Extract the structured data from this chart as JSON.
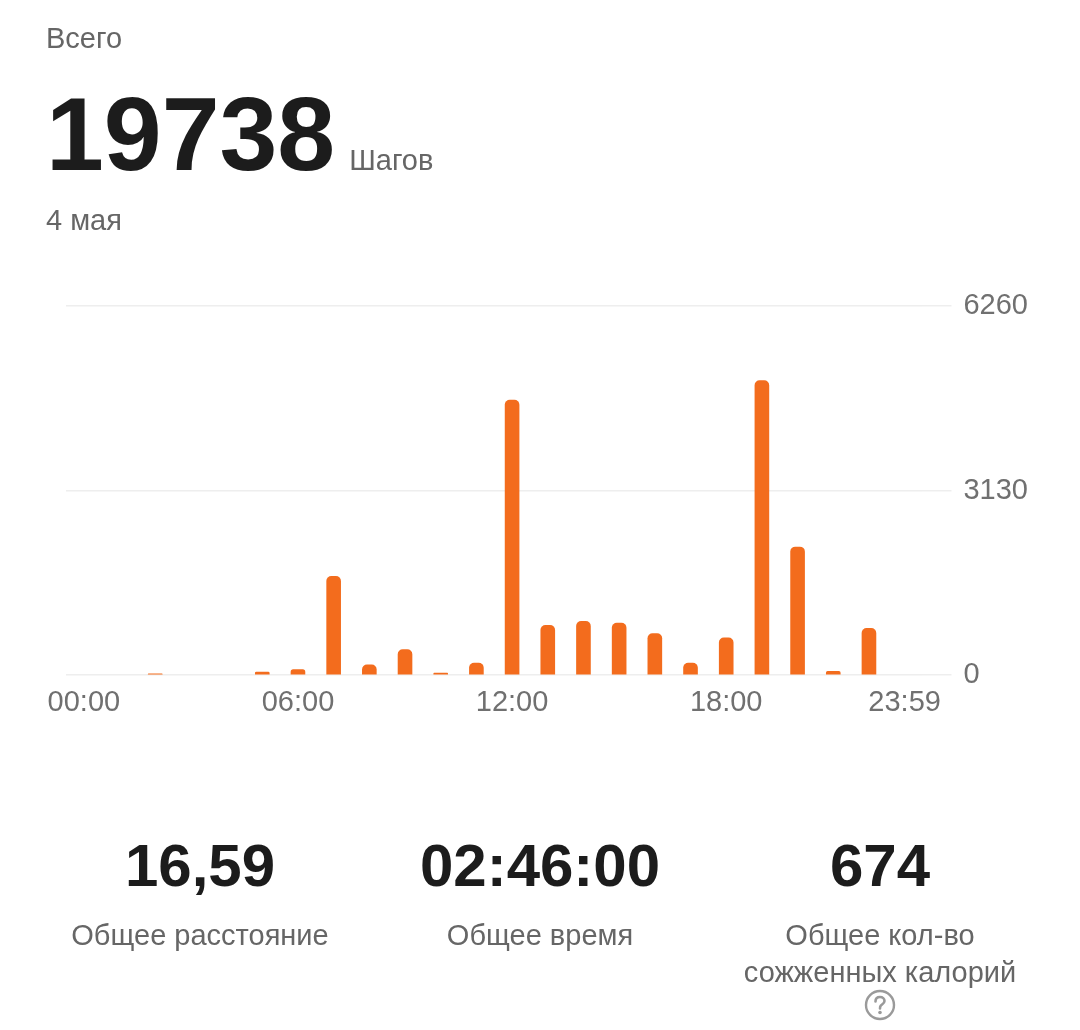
{
  "chart_data": {
    "type": "bar",
    "title": "Всего",
    "subtitle": "4 мая",
    "annotations": [
      "19738",
      "Шагов",
      "16,59",
      "Общее расстояние",
      "02:46:00",
      "Общее время",
      "674",
      "Общее кол-во сожженных калорий"
    ],
    "categories": [
      "00:00",
      null,
      null,
      null,
      null,
      null,
      "06:00",
      null,
      null,
      null,
      null,
      null,
      "12:00",
      null,
      null,
      null,
      null,
      null,
      "18:00",
      null,
      null,
      null,
      null,
      "23:59"
    ],
    "values": [
      0,
      0,
      30,
      0,
      0,
      60,
      100,
      1680,
      180,
      440,
      40,
      210,
      4670,
      850,
      920,
      890,
      710,
      210,
      640,
      5000,
      2180,
      70,
      800,
      0
    ],
    "color": "#f36c1d",
    "ylim": [
      0,
      6260
    ],
    "yticks": [
      0,
      3130,
      6260
    ],
    "grid": "y"
  }
}
